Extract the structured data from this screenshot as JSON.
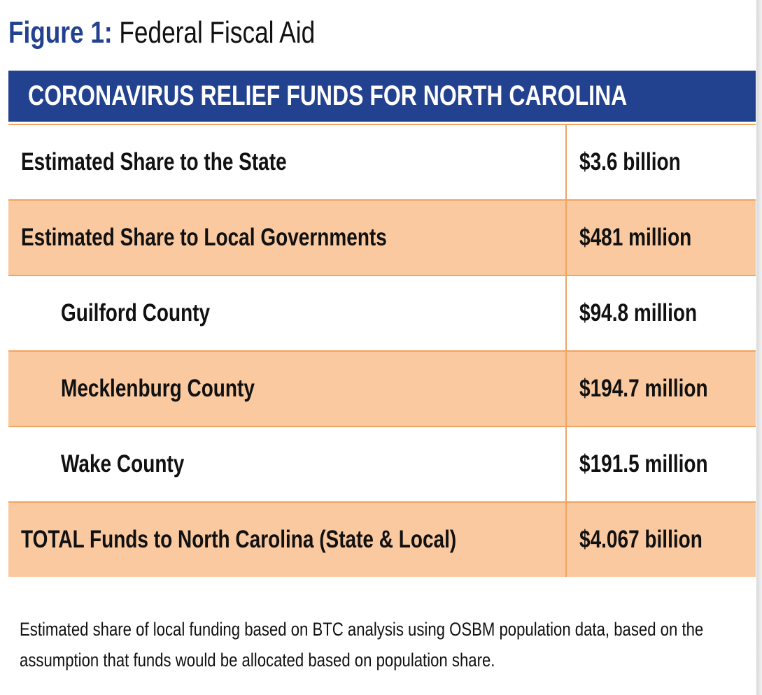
{
  "header": {
    "figure_label": "Figure 1:",
    "title": "Federal Fiscal Aid"
  },
  "table": {
    "title": "CORONAVIRUS RELIEF FUNDS FOR NORTH CAROLINA",
    "rows": [
      [
        "Estimated Share to the State",
        "$3.6 billion"
      ],
      [
        "Estimated Share to Local Governments",
        "$481 million"
      ],
      [
        "Guilford County",
        "$94.8 million"
      ],
      [
        "Mecklenburg County",
        "$194.7 million"
      ],
      [
        "Wake County",
        "$191.5 million"
      ],
      [
        "TOTAL Funds to North Carolina (State & Local)",
        "$4.067 billion"
      ]
    ]
  },
  "footnote": "Estimated share of local funding based on BTC analysis using OSBM population data, based on the assumption that funds would be allocated based on population share."
}
